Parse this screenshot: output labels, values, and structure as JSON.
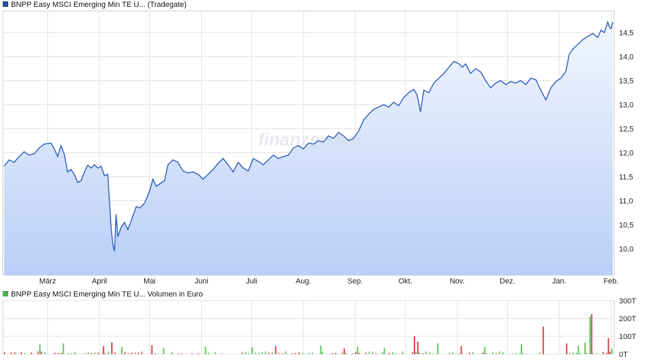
{
  "price_chart": {
    "legend": "BNPP Easy MSCI Emerging Min TE U...  (Tradegate)",
    "legend_color": "#1f4e9a",
    "line_color": "#2a5db8",
    "watermark": "finanzen.net",
    "chart_data": {
      "type": "area",
      "title": "",
      "xlabel": "",
      "ylabel": "",
      "ylim": [
        9.45,
        14.95
      ],
      "y_ticks": [
        10.0,
        10.5,
        11.0,
        11.5,
        12.0,
        12.5,
        13.0,
        13.5,
        14.0,
        14.5
      ],
      "y_tick_labels": [
        "10,0",
        "10,5",
        "11,0",
        "11,5",
        "12,0",
        "12,5",
        "13,0",
        "13,5",
        "14,0",
        "14,5"
      ],
      "x_tick_labels": [
        "März",
        "April",
        "Mai",
        "Juni",
        "Juli",
        "Aug.",
        "Sep.",
        "Okt.",
        "Nov.",
        "Dez.",
        "Jan.",
        "Feb."
      ],
      "x_tick_dates": [
        "2025-03-01",
        "2025-04-01",
        "2025-05-01",
        "2025-06-01",
        "2025-07-01",
        "2025-08-01",
        "2025-09-01",
        "2025-10-01",
        "2025-11-01",
        "2025-12-01",
        "2026-01-01",
        "2026-02-01"
      ],
      "x_range": [
        "2025-02-03",
        "2026-02-02"
      ],
      "series": [
        {
          "points": [
            [
              "2025-02-03",
              11.72
            ],
            [
              "2025-02-06",
              11.85
            ],
            [
              "2025-02-09",
              11.8
            ],
            [
              "2025-02-12",
              11.92
            ],
            [
              "2025-02-15",
              12.02
            ],
            [
              "2025-02-18",
              11.95
            ],
            [
              "2025-02-21",
              11.98
            ],
            [
              "2025-02-24",
              12.1
            ],
            [
              "2025-02-27",
              12.18
            ],
            [
              "2025-03-03",
              12.2
            ],
            [
              "2025-03-05",
              12.08
            ],
            [
              "2025-03-07",
              11.92
            ],
            [
              "2025-03-09",
              12.15
            ],
            [
              "2025-03-11",
              11.97
            ],
            [
              "2025-03-13",
              11.6
            ],
            [
              "2025-03-15",
              11.65
            ],
            [
              "2025-03-17",
              11.55
            ],
            [
              "2025-03-19",
              11.38
            ],
            [
              "2025-03-21",
              11.42
            ],
            [
              "2025-03-23",
              11.6
            ],
            [
              "2025-03-25",
              11.74
            ],
            [
              "2025-03-27",
              11.68
            ],
            [
              "2025-03-29",
              11.75
            ],
            [
              "2025-03-31",
              11.68
            ],
            [
              "2025-04-02",
              11.72
            ],
            [
              "2025-04-04",
              11.52
            ],
            [
              "2025-04-06",
              11.55
            ],
            [
              "2025-04-07",
              11.0
            ],
            [
              "2025-04-08",
              10.42
            ],
            [
              "2025-04-09",
              10.1
            ],
            [
              "2025-04-10",
              9.95
            ],
            [
              "2025-04-11",
              10.72
            ],
            [
              "2025-04-12",
              10.25
            ],
            [
              "2025-04-14",
              10.45
            ],
            [
              "2025-04-16",
              10.55
            ],
            [
              "2025-04-18",
              10.4
            ],
            [
              "2025-04-20",
              10.58
            ],
            [
              "2025-04-23",
              10.88
            ],
            [
              "2025-04-25",
              10.85
            ],
            [
              "2025-04-28",
              10.95
            ],
            [
              "2025-05-01",
              11.2
            ],
            [
              "2025-05-03",
              11.45
            ],
            [
              "2025-05-05",
              11.3
            ],
            [
              "2025-05-07",
              11.35
            ],
            [
              "2025-05-10",
              11.42
            ],
            [
              "2025-05-12",
              11.75
            ],
            [
              "2025-05-15",
              11.85
            ],
            [
              "2025-05-18",
              11.8
            ],
            [
              "2025-05-21",
              11.62
            ],
            [
              "2025-05-24",
              11.58
            ],
            [
              "2025-05-27",
              11.6
            ],
            [
              "2025-05-30",
              11.55
            ],
            [
              "2025-06-02",
              11.45
            ],
            [
              "2025-06-05",
              11.55
            ],
            [
              "2025-06-08",
              11.65
            ],
            [
              "2025-06-11",
              11.78
            ],
            [
              "2025-06-14",
              11.88
            ],
            [
              "2025-06-17",
              11.75
            ],
            [
              "2025-06-20",
              11.6
            ],
            [
              "2025-06-23",
              11.8
            ],
            [
              "2025-06-26",
              11.68
            ],
            [
              "2025-06-29",
              11.62
            ],
            [
              "2025-07-02",
              11.88
            ],
            [
              "2025-07-05",
              11.82
            ],
            [
              "2025-07-08",
              11.75
            ],
            [
              "2025-07-11",
              11.85
            ],
            [
              "2025-07-14",
              11.95
            ],
            [
              "2025-07-17",
              11.88
            ],
            [
              "2025-07-20",
              11.92
            ],
            [
              "2025-07-23",
              11.95
            ],
            [
              "2025-07-26",
              12.1
            ],
            [
              "2025-07-29",
              12.15
            ],
            [
              "2025-08-01",
              12.08
            ],
            [
              "2025-08-04",
              12.2
            ],
            [
              "2025-08-07",
              12.18
            ],
            [
              "2025-08-10",
              12.25
            ],
            [
              "2025-08-13",
              12.22
            ],
            [
              "2025-08-16",
              12.35
            ],
            [
              "2025-08-19",
              12.3
            ],
            [
              "2025-08-22",
              12.42
            ],
            [
              "2025-08-25",
              12.35
            ],
            [
              "2025-08-28",
              12.25
            ],
            [
              "2025-08-31",
              12.3
            ],
            [
              "2025-09-03",
              12.45
            ],
            [
              "2025-09-06",
              12.68
            ],
            [
              "2025-09-09",
              12.8
            ],
            [
              "2025-09-12",
              12.9
            ],
            [
              "2025-09-15",
              12.95
            ],
            [
              "2025-09-18",
              13.0
            ],
            [
              "2025-09-21",
              12.95
            ],
            [
              "2025-09-24",
              13.05
            ],
            [
              "2025-09-27",
              12.98
            ],
            [
              "2025-09-30",
              13.15
            ],
            [
              "2025-10-03",
              13.25
            ],
            [
              "2025-10-06",
              13.32
            ],
            [
              "2025-10-08",
              13.2
            ],
            [
              "2025-10-10",
              12.85
            ],
            [
              "2025-10-12",
              13.3
            ],
            [
              "2025-10-15",
              13.25
            ],
            [
              "2025-10-18",
              13.45
            ],
            [
              "2025-10-21",
              13.55
            ],
            [
              "2025-10-24",
              13.65
            ],
            [
              "2025-10-27",
              13.78
            ],
            [
              "2025-10-30",
              13.9
            ],
            [
              "2025-11-02",
              13.85
            ],
            [
              "2025-11-04",
              13.78
            ],
            [
              "2025-11-06",
              13.85
            ],
            [
              "2025-11-09",
              13.65
            ],
            [
              "2025-11-12",
              13.75
            ],
            [
              "2025-11-15",
              13.68
            ],
            [
              "2025-11-18",
              13.5
            ],
            [
              "2025-11-21",
              13.35
            ],
            [
              "2025-11-24",
              13.45
            ],
            [
              "2025-11-27",
              13.5
            ],
            [
              "2025-11-30",
              13.42
            ],
            [
              "2025-12-03",
              13.48
            ],
            [
              "2025-12-06",
              13.45
            ],
            [
              "2025-12-09",
              13.5
            ],
            [
              "2025-12-12",
              13.42
            ],
            [
              "2025-12-15",
              13.55
            ],
            [
              "2025-12-18",
              13.52
            ],
            [
              "2025-12-21",
              13.3
            ],
            [
              "2025-12-24",
              13.1
            ],
            [
              "2025-12-27",
              13.35
            ],
            [
              "2025-12-30",
              13.48
            ],
            [
              "2026-01-02",
              13.55
            ],
            [
              "2026-01-05",
              13.7
            ],
            [
              "2026-01-07",
              14.05
            ],
            [
              "2026-01-09",
              14.15
            ],
            [
              "2026-01-12",
              14.25
            ],
            [
              "2026-01-15",
              14.35
            ],
            [
              "2026-01-18",
              14.42
            ],
            [
              "2026-01-21",
              14.48
            ],
            [
              "2026-01-24",
              14.4
            ],
            [
              "2026-01-26",
              14.55
            ],
            [
              "2026-01-28",
              14.5
            ],
            [
              "2026-01-30",
              14.72
            ],
            [
              "2026-01-31",
              14.62
            ],
            [
              "2026-02-01",
              14.58
            ],
            [
              "2026-02-02",
              14.72
            ]
          ]
        }
      ]
    }
  },
  "volume_chart": {
    "legend": "BNPP Easy MSCI Emerging Min TE U...  Volumen in Euro",
    "legend_color": "#4caf50",
    "up_color": "#5cc75c",
    "down_color": "#d64545",
    "chart_data": {
      "type": "bar",
      "title": "",
      "xlabel": "",
      "ylabel": "",
      "ylim": [
        0,
        300
      ],
      "y_unit": "T",
      "y_ticks": [
        0,
        100,
        200,
        300
      ],
      "y_tick_labels": [
        "0T",
        "100T",
        "200T",
        "300T"
      ],
      "tall_bars": [
        [
          "2025-02-24",
          55,
          "up"
        ],
        [
          "2025-03-10",
          60,
          "up"
        ],
        [
          "2025-04-03",
          45,
          "down"
        ],
        [
          "2025-04-08",
          65,
          "down"
        ],
        [
          "2025-04-14",
          40,
          "up"
        ],
        [
          "2025-05-02",
          50,
          "down"
        ],
        [
          "2025-05-09",
          35,
          "up"
        ],
        [
          "2025-06-03",
          42,
          "up"
        ],
        [
          "2025-07-01",
          38,
          "up"
        ],
        [
          "2025-07-15",
          45,
          "down"
        ],
        [
          "2025-08-11",
          48,
          "up"
        ],
        [
          "2025-08-25",
          32,
          "down"
        ],
        [
          "2025-09-02",
          40,
          "up"
        ],
        [
          "2025-09-18",
          35,
          "up"
        ],
        [
          "2025-10-06",
          100,
          "down"
        ],
        [
          "2025-10-08",
          70,
          "down"
        ],
        [
          "2025-10-20",
          60,
          "up"
        ],
        [
          "2025-11-03",
          45,
          "down"
        ],
        [
          "2025-11-17",
          40,
          "up"
        ],
        [
          "2025-12-09",
          55,
          "up"
        ],
        [
          "2025-12-22",
          155,
          "down"
        ],
        [
          "2026-01-05",
          60,
          "down"
        ],
        [
          "2026-01-12",
          45,
          "up"
        ],
        [
          "2026-01-16",
          65,
          "up"
        ],
        [
          "2026-01-19",
          210,
          "up"
        ],
        [
          "2026-01-20",
          225,
          "down"
        ],
        [
          "2026-01-30",
          90,
          "down"
        ],
        [
          "2026-02-01",
          30,
          "up"
        ]
      ],
      "base_level": 12
    }
  }
}
